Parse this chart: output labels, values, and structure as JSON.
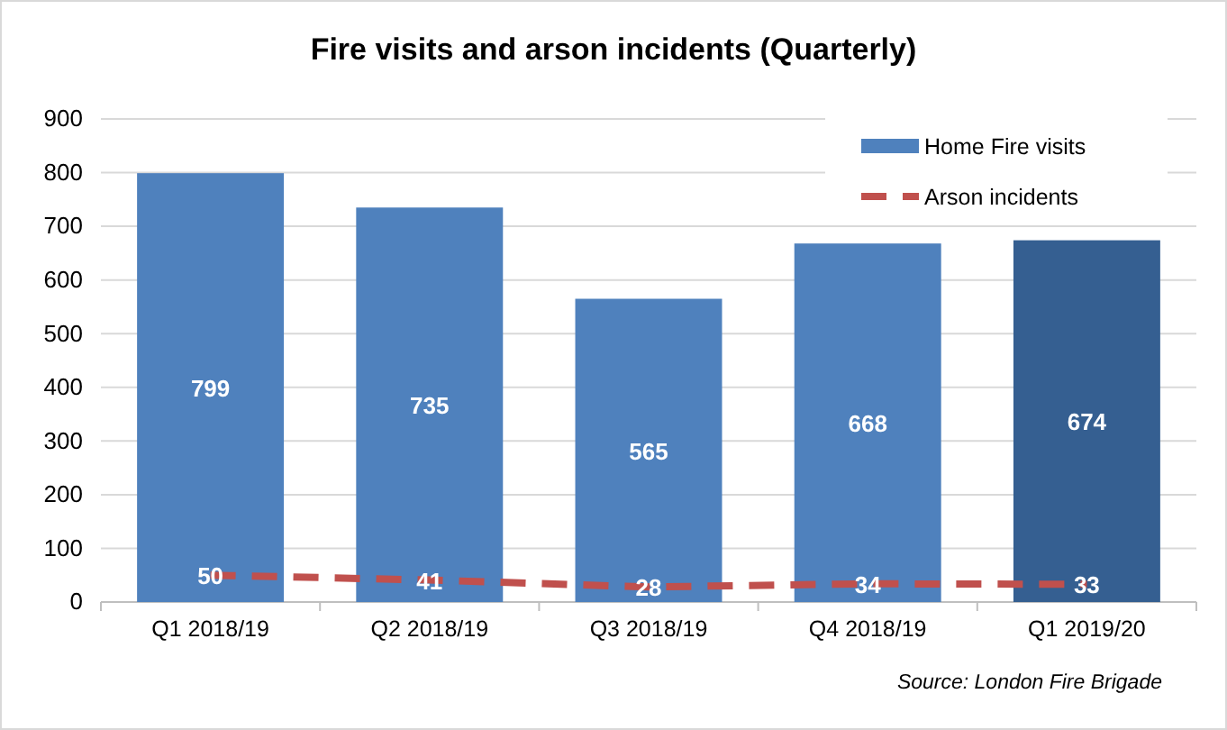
{
  "chart_data": {
    "type": "bar",
    "title": "Fire visits and arson incidents (Quarterly)",
    "categories": [
      "Q1 2018/19",
      "Q2 2018/19",
      "Q3 2018/19",
      "Q4 2018/19",
      "Q1 2019/20"
    ],
    "series": [
      {
        "name": "Home Fire visits",
        "color": "#4f81bd",
        "colors": [
          "#4f81bd",
          "#4f81bd",
          "#4f81bd",
          "#4f81bd",
          "#355f91"
        ],
        "values": [
          799,
          735,
          565,
          668,
          674
        ]
      },
      {
        "name": "Arson incidents",
        "type": "line",
        "color": "#c0504d",
        "line_style": "dashed",
        "values": [
          50,
          41,
          28,
          34,
          33
        ]
      }
    ],
    "ylim": [
      0,
      900
    ],
    "yticks": [
      0,
      100,
      200,
      300,
      400,
      500,
      600,
      700,
      800,
      900
    ],
    "grid": "y",
    "legend": "top right",
    "data_labels": true,
    "marker": "none",
    "annotations": [
      "Source: London Fire Brigade"
    ]
  }
}
